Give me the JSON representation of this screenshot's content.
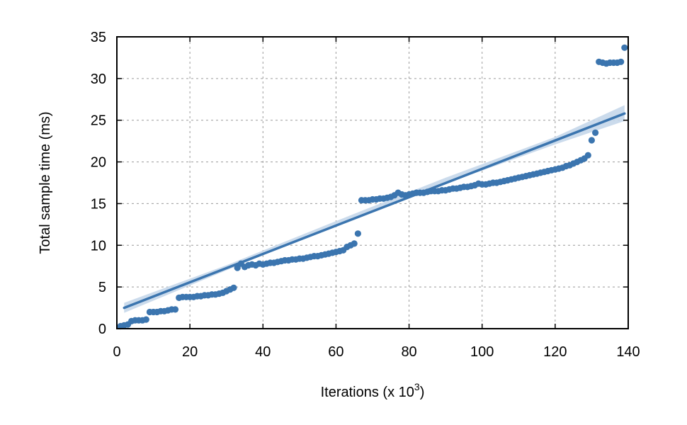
{
  "chart_data": {
    "type": "scatter",
    "title": "",
    "xlabel": "Iterations (x 10",
    "xlabel_superscript": "3",
    "xlabel_suffix": ")",
    "ylabel": "Total sample time (ms)",
    "xlim": [
      0,
      140
    ],
    "ylim": [
      0,
      35
    ],
    "xticks": [
      0,
      20,
      40,
      60,
      80,
      100,
      120,
      140
    ],
    "yticks": [
      0,
      5,
      10,
      15,
      20,
      25,
      30,
      35
    ],
    "grid": true,
    "legend": "none",
    "colors": {
      "points": "#3b75af",
      "fit_line": "#3b75af",
      "confidence_band": "#c5d7ea"
    },
    "series": [
      {
        "type": "scatter",
        "x": [
          1,
          2,
          3,
          4,
          5,
          6,
          7,
          8,
          9,
          10,
          11,
          12,
          13,
          14,
          15,
          16,
          17,
          18,
          19,
          20,
          21,
          22,
          23,
          24,
          25,
          26,
          27,
          28,
          29,
          30,
          31,
          32,
          33,
          34,
          35,
          36,
          37,
          38,
          39,
          40,
          41,
          42,
          43,
          44,
          45,
          46,
          47,
          48,
          49,
          50,
          51,
          52,
          53,
          54,
          55,
          56,
          57,
          58,
          59,
          60,
          61,
          62,
          63,
          64,
          65,
          66,
          67,
          68,
          69,
          70,
          71,
          72,
          73,
          74,
          75,
          76,
          77,
          78,
          79,
          80,
          81,
          82,
          83,
          84,
          85,
          86,
          87,
          88,
          89,
          90,
          91,
          92,
          93,
          94,
          95,
          96,
          97,
          98,
          99,
          100,
          101,
          102,
          103,
          104,
          105,
          106,
          107,
          108,
          109,
          110,
          111,
          112,
          113,
          114,
          115,
          116,
          117,
          118,
          119,
          120,
          121,
          122,
          123,
          124,
          125,
          126,
          127,
          128,
          129,
          130,
          131,
          132,
          133,
          134,
          135,
          136,
          137,
          138,
          139
        ],
        "y": [
          0.3,
          0.4,
          0.5,
          0.9,
          1.0,
          1.0,
          1.0,
          1.1,
          2.0,
          2.0,
          2.0,
          2.1,
          2.1,
          2.2,
          2.3,
          2.3,
          3.7,
          3.8,
          3.8,
          3.8,
          3.8,
          3.9,
          3.9,
          4.0,
          4.0,
          4.1,
          4.1,
          4.2,
          4.3,
          4.5,
          4.7,
          4.9,
          7.3,
          7.8,
          7.4,
          7.6,
          7.7,
          7.6,
          7.8,
          7.7,
          7.8,
          7.9,
          7.9,
          8.0,
          8.1,
          8.2,
          8.2,
          8.3,
          8.3,
          8.4,
          8.4,
          8.5,
          8.6,
          8.7,
          8.7,
          8.8,
          8.9,
          9.0,
          9.1,
          9.2,
          9.3,
          9.4,
          9.8,
          10.0,
          10.2,
          11.4,
          15.4,
          15.4,
          15.4,
          15.5,
          15.5,
          15.6,
          15.6,
          15.7,
          15.8,
          16.0,
          16.3,
          16.1,
          16.0,
          16.1,
          16.2,
          16.3,
          16.3,
          16.3,
          16.4,
          16.5,
          16.5,
          16.5,
          16.6,
          16.6,
          16.7,
          16.8,
          16.8,
          16.9,
          17.0,
          17.0,
          17.1,
          17.2,
          17.4,
          17.3,
          17.3,
          17.4,
          17.5,
          17.5,
          17.6,
          17.7,
          17.8,
          17.9,
          18.0,
          18.1,
          18.2,
          18.3,
          18.4,
          18.5,
          18.6,
          18.7,
          18.8,
          18.9,
          19.0,
          19.1,
          19.2,
          19.3,
          19.5,
          19.6,
          19.8,
          20.0,
          20.2,
          20.4,
          20.8,
          22.6,
          23.5,
          32.0,
          31.9,
          31.8,
          31.9,
          31.9,
          31.9,
          32.0,
          33.7
        ]
      },
      {
        "type": "line",
        "x": [
          2,
          139
        ],
        "y": [
          2.5,
          25.8
        ]
      },
      {
        "type": "area",
        "x": [
          2,
          30,
          60,
          90,
          120,
          139
        ],
        "y_lower": [
          1.9,
          7.0,
          12.4,
          17.4,
          22.1,
          24.9
        ],
        "y_upper": [
          3.1,
          7.6,
          12.9,
          18.1,
          23.0,
          26.8
        ]
      }
    ]
  }
}
